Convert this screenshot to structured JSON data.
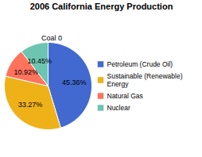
{
  "chart_data": {
    "type": "pie",
    "title": "2006 California Energy Production",
    "categories": [
      "Petroleum (Crude Oil)",
      "Sustainable (Renewable)\nEnergy",
      "Natural Gas",
      "Nuclear"
    ],
    "values": [
      45.36,
      33.27,
      10.92,
      10.45
    ],
    "value_labels": [
      "45.36%",
      "33.27%",
      "10.92%",
      "10.45%"
    ],
    "data_labels": true,
    "annotations": [
      "Coal 0"
    ],
    "legend": "right"
  }
}
